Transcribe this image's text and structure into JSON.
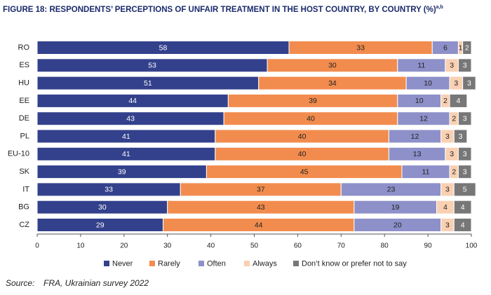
{
  "chart_data": {
    "type": "stacked_bar_horizontal",
    "title": "FIGURE 18:   RESPONDENTS’ PERCEPTIONS OF UNFAIR TREATMENT IN THE HOST COUNTRY, BY COUNTRY (%)",
    "title_superscript": "a,b",
    "categories": [
      "RO",
      "ES",
      "HU",
      "EE",
      "DE",
      "PL",
      "EU-10",
      "SK",
      "IT",
      "BG",
      "CZ"
    ],
    "series": [
      {
        "name": "Never",
        "color": "#33418c",
        "values": [
          58,
          53,
          51,
          44,
          43,
          41,
          41,
          39,
          33,
          30,
          29
        ]
      },
      {
        "name": "Rarely",
        "color": "#f28c4e",
        "values": [
          33,
          30,
          34,
          39,
          40,
          40,
          40,
          45,
          37,
          43,
          44
        ]
      },
      {
        "name": "Often",
        "color": "#8d90c9",
        "values": [
          6,
          11,
          10,
          10,
          12,
          12,
          13,
          11,
          23,
          19,
          20
        ]
      },
      {
        "name": "Always",
        "color": "#f9d0b2",
        "values": [
          1,
          3,
          3,
          2,
          2,
          3,
          3,
          2,
          3,
          4,
          3
        ]
      },
      {
        "name": "Don’t know or prefer not to say",
        "color": "#777777",
        "values": [
          2,
          3,
          3,
          4,
          3,
          3,
          3,
          3,
          5,
          4,
          4
        ]
      }
    ],
    "xlim": [
      0,
      100
    ],
    "xticks": [
      0,
      10,
      20,
      30,
      40,
      50,
      60,
      70,
      80,
      90,
      100
    ],
    "grid": false,
    "legend": "bottom",
    "source_label": "Source:",
    "source": "FRA, Ukrainian survey 2022"
  }
}
